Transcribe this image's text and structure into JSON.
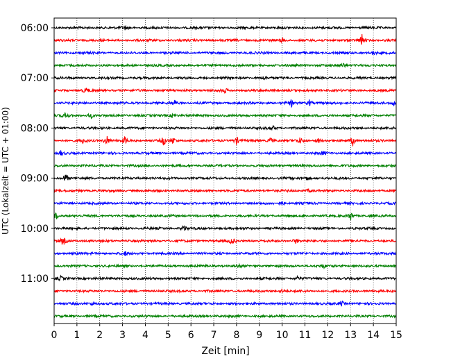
{
  "chart_data": {
    "type": "line",
    "xlabel": "Zeit  [min]",
    "ylabel": "UTC (Lokalzeit = UTC + 01:00)",
    "xlim": [
      0,
      15
    ],
    "x_ticks": [
      "0",
      "1",
      "2",
      "3",
      "4",
      "5",
      "6",
      "7",
      "8",
      "9",
      "10",
      "11",
      "12",
      "13",
      "14",
      "15"
    ],
    "y_ticks": [
      "06:00",
      "07:00",
      "08:00",
      "09:00",
      "10:00",
      "11:00"
    ],
    "grid": "vertical dotted",
    "trace_interval_min": 15,
    "colors": [
      "#000000",
      "#ff0000",
      "#0000ff",
      "#008000"
    ],
    "traces": [
      {
        "start": "06:00",
        "color": "#000000",
        "events": [
          [
            3.1,
            0.3
          ]
        ]
      },
      {
        "start": "06:15",
        "color": "#ff0000",
        "events": [
          [
            10.0,
            0.4
          ],
          [
            13.5,
            0.9
          ]
        ]
      },
      {
        "start": "06:30",
        "color": "#0000ff",
        "events": [
          [
            14.0,
            0.3
          ]
        ]
      },
      {
        "start": "06:45",
        "color": "#008000",
        "events": [
          [
            12.7,
            0.4
          ]
        ]
      },
      {
        "start": "07:00",
        "color": "#000000",
        "events": [
          [
            9.2,
            0.3
          ]
        ]
      },
      {
        "start": "07:15",
        "color": "#ff0000",
        "events": [
          [
            1.4,
            0.5
          ],
          [
            7.5,
            0.3
          ]
        ]
      },
      {
        "start": "07:30",
        "color": "#0000ff",
        "events": [
          [
            5.3,
            0.5
          ],
          [
            10.4,
            0.5
          ],
          [
            11.2,
            0.5
          ],
          [
            14.9,
            0.4
          ]
        ]
      },
      {
        "start": "07:45",
        "color": "#008000",
        "events": [
          [
            0.5,
            0.5
          ],
          [
            1.6,
            0.5
          ],
          [
            5.2,
            0.4
          ]
        ]
      },
      {
        "start": "08:00",
        "color": "#000000",
        "events": [
          [
            9.6,
            0.3
          ]
        ]
      },
      {
        "start": "08:15",
        "color": "#ff0000",
        "events": [
          [
            1.3,
            0.5
          ],
          [
            2.3,
            0.9
          ],
          [
            3.1,
            0.6
          ],
          [
            4.8,
            0.8
          ],
          [
            5.2,
            0.6
          ],
          [
            8.0,
            0.6
          ],
          [
            9.5,
            0.5
          ],
          [
            10.8,
            0.5
          ],
          [
            11.6,
            0.4
          ],
          [
            13.1,
            0.8
          ]
        ]
      },
      {
        "start": "08:30",
        "color": "#0000ff",
        "events": [
          [
            0.3,
            0.4
          ],
          [
            11.8,
            0.3
          ]
        ]
      },
      {
        "start": "08:45",
        "color": "#008000",
        "events": []
      },
      {
        "start": "09:00",
        "color": "#000000",
        "events": [
          [
            0.5,
            0.8
          ],
          [
            11.1,
            0.3
          ]
        ]
      },
      {
        "start": "09:15",
        "color": "#ff0000",
        "events": [
          [
            11.2,
            0.3
          ]
        ]
      },
      {
        "start": "09:30",
        "color": "#0000ff",
        "events": [
          [
            10.0,
            0.3
          ]
        ]
      },
      {
        "start": "09:45",
        "color": "#008000",
        "events": [
          [
            0.1,
            0.5
          ],
          [
            13.0,
            0.7
          ]
        ]
      },
      {
        "start": "10:00",
        "color": "#000000",
        "events": [
          [
            5.7,
            0.5
          ]
        ]
      },
      {
        "start": "10:15",
        "color": "#ff0000",
        "events": [
          [
            0.4,
            0.7
          ],
          [
            7.8,
            0.6
          ],
          [
            10.6,
            0.4
          ]
        ]
      },
      {
        "start": "10:30",
        "color": "#0000ff",
        "events": [
          [
            3.1,
            0.3
          ]
        ]
      },
      {
        "start": "10:45",
        "color": "#008000",
        "events": [
          [
            8.1,
            0.3
          ],
          [
            11.8,
            0.3
          ]
        ]
      },
      {
        "start": "11:00",
        "color": "#000000",
        "events": [
          [
            0.3,
            0.3
          ],
          [
            10.7,
            0.4
          ]
        ]
      },
      {
        "start": "11:15",
        "color": "#ff0000",
        "events": [
          [
            10.0,
            0.3
          ]
        ]
      },
      {
        "start": "11:30",
        "color": "#0000ff",
        "events": [
          [
            1.7,
            0.4
          ],
          [
            12.6,
            0.4
          ]
        ]
      },
      {
        "start": "11:45",
        "color": "#008000",
        "events": []
      }
    ]
  }
}
